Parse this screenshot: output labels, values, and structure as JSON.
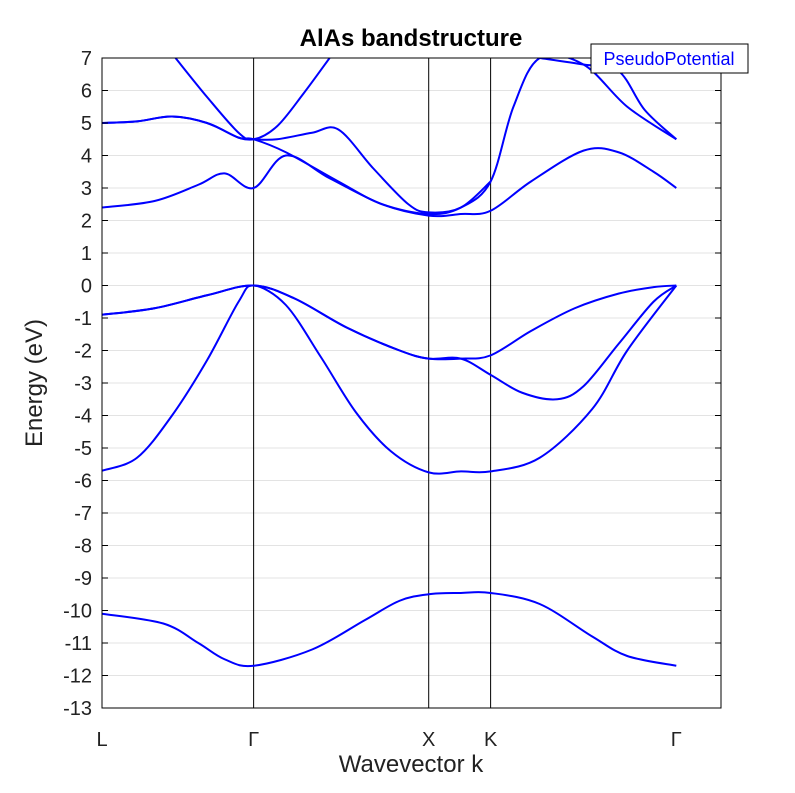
{
  "chart_data": {
    "type": "line",
    "title": "AlAs bandstructure",
    "xlabel": "Wavevector k",
    "ylabel": "Energy (eV)",
    "ylim": [
      -13,
      7
    ],
    "yticks": [
      7,
      6,
      5,
      4,
      3,
      2,
      1,
      0,
      -1,
      -2,
      -3,
      -4,
      -5,
      -6,
      -7,
      -8,
      -9,
      -10,
      -11,
      -12,
      -13
    ],
    "xlim": [
      0,
      3.5355
    ],
    "kpoints": [
      {
        "label": "L",
        "k": 0
      },
      {
        "label": "Γ",
        "k": 0.866
      },
      {
        "label": "X",
        "k": 1.866
      },
      {
        "label": "K",
        "k": 2.2196
      },
      {
        "label": "Γ",
        "k": 3.2802
      }
    ],
    "legend": {
      "entries": [
        "PseudoPotential"
      ],
      "position": "top-right"
    },
    "grid": "horizontal",
    "line_color": "#0000ff",
    "series": [
      {
        "x": [
          0,
          0.35,
          0.55,
          0.7,
          0.866,
          1.2,
          1.5,
          1.7,
          1.866,
          2.05,
          2.2196,
          2.5,
          2.8,
          3.0,
          3.2802
        ],
        "y": [
          -10.1,
          -10.4,
          -11.0,
          -11.5,
          -11.7,
          -11.2,
          -10.3,
          -9.7,
          -9.5,
          -9.46,
          -9.46,
          -9.8,
          -10.8,
          -11.4,
          -11.7
        ]
      },
      {
        "x": [
          0,
          0.2,
          0.4,
          0.6,
          0.78,
          0.866,
          1.05,
          1.25,
          1.45,
          1.65,
          1.866,
          2.05,
          2.2196,
          2.5,
          2.8,
          3.0,
          3.2802
        ],
        "y": [
          -5.7,
          -5.3,
          -4.0,
          -2.3,
          -0.5,
          0.0,
          -0.6,
          -2.2,
          -3.9,
          -5.1,
          -5.75,
          -5.72,
          -5.72,
          -5.3,
          -3.8,
          -2.0,
          0.0
        ]
      },
      {
        "x": [
          0,
          0.3,
          0.6,
          0.866,
          1.1,
          1.4,
          1.7,
          1.866,
          2.05,
          2.2196,
          2.4,
          2.6,
          2.75,
          2.95,
          3.15,
          3.2802
        ],
        "y": [
          -0.9,
          -0.7,
          -0.3,
          0.0,
          -0.4,
          -1.3,
          -2.0,
          -2.25,
          -2.25,
          -2.75,
          -3.3,
          -3.5,
          -3.1,
          -1.8,
          -0.5,
          0.0
        ]
      },
      {
        "x": [
          0,
          0.3,
          0.6,
          0.866,
          1.1,
          1.4,
          1.7,
          1.866,
          2.05,
          2.2196,
          2.45,
          2.7,
          2.95,
          3.15,
          3.2802
        ],
        "y": [
          -0.9,
          -0.7,
          -0.3,
          0.0,
          -0.4,
          -1.3,
          -2.0,
          -2.25,
          -2.25,
          -2.15,
          -1.4,
          -0.7,
          -0.25,
          -0.05,
          0.0
        ]
      },
      {
        "x": [
          0,
          0.3,
          0.55,
          0.7,
          0.866,
          1.05,
          1.3,
          1.6,
          1.866,
          2.05,
          2.2196,
          2.45,
          2.75,
          2.95,
          3.15,
          3.2802
        ],
        "y": [
          2.4,
          2.6,
          3.1,
          3.45,
          3.0,
          4.0,
          3.3,
          2.5,
          2.15,
          2.2,
          2.3,
          3.2,
          4.15,
          4.1,
          3.5,
          3.0
        ]
      },
      {
        "x": [
          0,
          0.2,
          0.4,
          0.6,
          0.78,
          0.866,
          1.05,
          1.35,
          1.6,
          1.866,
          2.05,
          2.2196,
          2.35,
          2.5,
          2.75,
          3.0,
          3.2802
        ],
        "y": [
          5.0,
          5.05,
          5.2,
          5.0,
          4.55,
          4.5,
          4.1,
          3.2,
          2.5,
          2.2,
          2.4,
          3.2,
          5.5,
          7.0,
          6.8,
          5.5,
          4.5
        ]
      },
      {
        "x": [
          0,
          0.2,
          0.4,
          0.6,
          0.78,
          0.866,
          1.0,
          1.2,
          1.35,
          1.55,
          1.75,
          1.866,
          2.05,
          2.2196
        ],
        "y": [
          5.0,
          5.05,
          5.2,
          5.0,
          4.55,
          4.5,
          4.5,
          4.7,
          4.8,
          3.6,
          2.5,
          2.25,
          2.4,
          3.2
        ]
      },
      {
        "x": [
          0.42,
          0.6,
          0.78,
          0.866,
          1.0,
          1.15,
          1.3
        ],
        "y": [
          7.0,
          5.8,
          4.7,
          4.5,
          4.9,
          5.9,
          7.0
        ]
      },
      {
        "x": [
          2.5,
          2.75,
          2.95,
          3.1,
          3.2802
        ],
        "y": [
          7.0,
          6.8,
          6.6,
          5.4,
          4.5
        ]
      }
    ]
  }
}
